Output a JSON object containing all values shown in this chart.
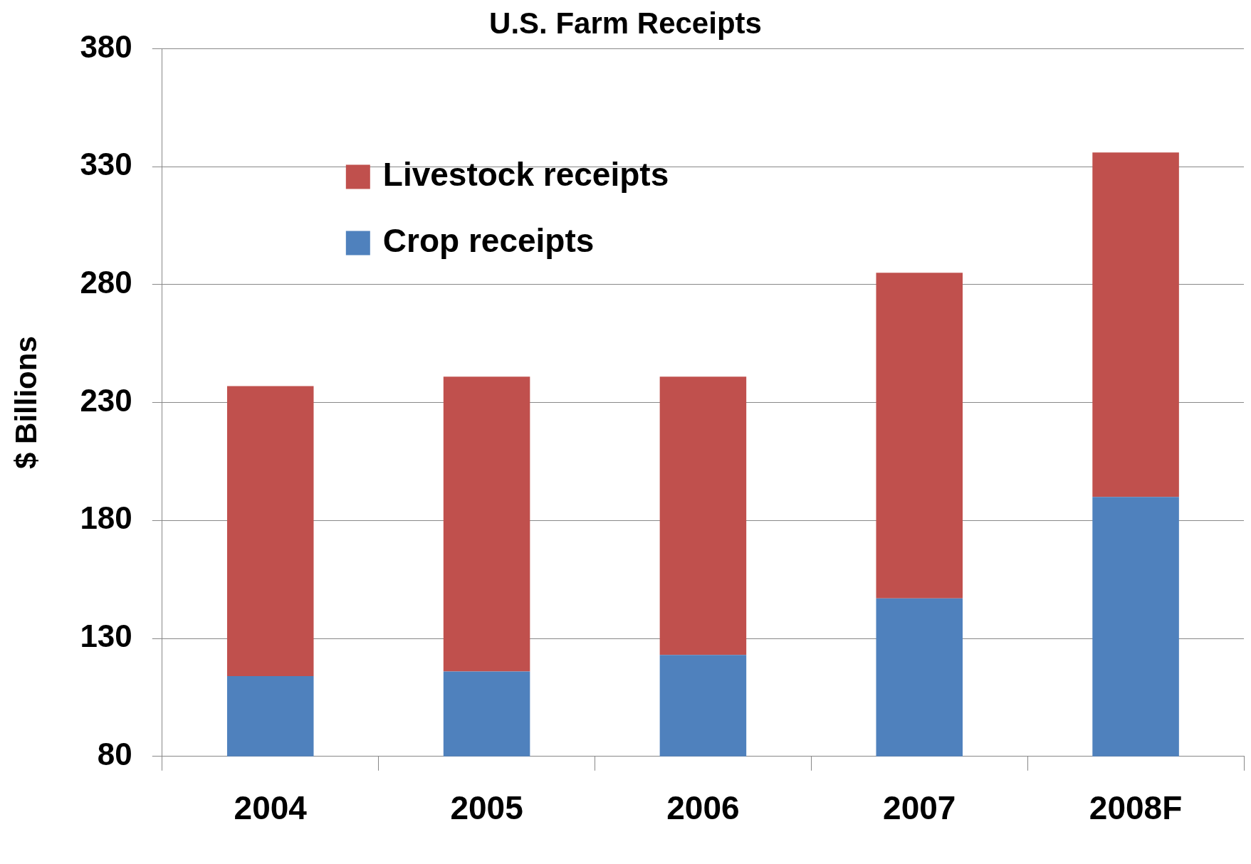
{
  "chart_data": {
    "type": "bar",
    "title": "U.S. Farm Receipts",
    "ylabel": "$ Billions",
    "categories": [
      "2004",
      "2005",
      "2006",
      "2007",
      "2008F"
    ],
    "series": [
      {
        "name": "Crop receipts",
        "color": "#4f81bd",
        "values": [
          114,
          116,
          123,
          147,
          190
        ]
      },
      {
        "name": "Livestock receipts",
        "color": "#c0504d",
        "values": [
          123,
          125,
          118,
          138,
          146
        ]
      }
    ],
    "stacked": true,
    "ylim": [
      80,
      380
    ],
    "yticks": [
      80,
      130,
      180,
      230,
      280,
      330,
      380
    ],
    "grid": "y",
    "legend": "top left"
  }
}
